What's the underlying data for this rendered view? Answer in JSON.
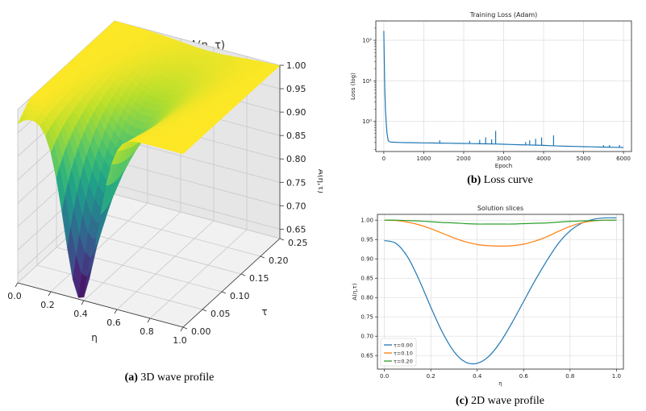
{
  "captions": {
    "a": {
      "label": "(a)",
      "text": "3D wave profile"
    },
    "b": {
      "label": "(b)",
      "text": "Loss curve"
    },
    "c": {
      "label": "(c)",
      "text": "2D wave profile"
    }
  },
  "chart_data": [
    {
      "type": "surface3d",
      "title": "PINN prediction A(η ,τ)",
      "xlabel": "η",
      "ylabel": "τ",
      "zlabel": "A(η,τ)",
      "xlim": [
        0.0,
        1.0
      ],
      "ylim": [
        0.0,
        0.25
      ],
      "zlim": [
        0.63,
        1.0
      ],
      "x_ticks": [
        "0.0",
        "0.2",
        "0.4",
        "0.6",
        "0.8",
        "1.0"
      ],
      "y_ticks": [
        "0.00",
        "0.05",
        "0.10",
        "0.15",
        "0.20",
        "0.25"
      ],
      "z_ticks": [
        "0.65",
        "0.70",
        "0.75",
        "0.80",
        "0.85",
        "0.90",
        "0.95",
        "1.00"
      ],
      "colormap": "viridis",
      "description_values": {
        "min_value": 0.63,
        "min_eta": 0.38,
        "min_tau": 0.0,
        "max_value": 1.0
      }
    },
    {
      "type": "line",
      "title": "Training Loss (Adam)",
      "xlabel": "Epoch",
      "ylabel": "Loss (log)",
      "yscale": "log",
      "xlim": [
        -200,
        6200
      ],
      "ylim": [
        0.18,
        300
      ],
      "x_ticks": [
        "0",
        "1000",
        "2000",
        "3000",
        "4000",
        "5000",
        "6000"
      ],
      "y_ticks": [
        "10⁰",
        "10¹",
        "10²"
      ],
      "grid": true,
      "series": [
        {
          "name": "loss",
          "color": "#1f77b4",
          "x": [
            0,
            10,
            25,
            40,
            60,
            80,
            110,
            150,
            250,
            400,
            600,
            800,
            1000,
            1200,
            1400,
            1600,
            1800,
            2000,
            2200,
            2400,
            2600,
            2800,
            3000,
            3200,
            3400,
            3600,
            3800,
            4000,
            4200,
            4400,
            4600,
            4800,
            5000,
            5200,
            5400,
            5600,
            5800,
            6000
          ],
          "y": [
            170,
            40,
            6.5,
            2.0,
            0.9,
            0.5,
            0.33,
            0.31,
            0.305,
            0.3,
            0.298,
            0.296,
            0.294,
            0.292,
            0.29,
            0.288,
            0.286,
            0.284,
            0.282,
            0.28,
            0.278,
            0.276,
            0.272,
            0.268,
            0.265,
            0.262,
            0.258,
            0.255,
            0.25,
            0.246,
            0.242,
            0.24,
            0.237,
            0.235,
            0.232,
            0.23,
            0.228,
            0.226
          ]
        }
      ],
      "spikes": [
        {
          "x": 1400,
          "y": 0.34
        },
        {
          "x": 2150,
          "y": 0.33
        },
        {
          "x": 2400,
          "y": 0.35
        },
        {
          "x": 2550,
          "y": 0.4
        },
        {
          "x": 2700,
          "y": 0.36
        },
        {
          "x": 2800,
          "y": 0.58
        },
        {
          "x": 3550,
          "y": 0.31
        },
        {
          "x": 3650,
          "y": 0.34
        },
        {
          "x": 3800,
          "y": 0.37
        },
        {
          "x": 3950,
          "y": 0.4
        },
        {
          "x": 4250,
          "y": 0.45
        },
        {
          "x": 5500,
          "y": 0.26
        },
        {
          "x": 5650,
          "y": 0.26
        },
        {
          "x": 5900,
          "y": 0.26
        }
      ]
    },
    {
      "type": "line",
      "title": "Solution slices",
      "xlabel": "η",
      "ylabel": "A(η,τ)",
      "xlim": [
        -0.03,
        1.03
      ],
      "ylim": [
        0.615,
        1.015
      ],
      "x_ticks": [
        "0.0",
        "0.2",
        "0.4",
        "0.6",
        "0.8",
        "1.0"
      ],
      "y_ticks": [
        "0.65",
        "0.70",
        "0.75",
        "0.80",
        "0.85",
        "0.90",
        "0.95",
        "1.00"
      ],
      "grid": true,
      "legend_position": "bottom-left",
      "x": [
        0.0,
        0.05,
        0.1,
        0.15,
        0.2,
        0.25,
        0.3,
        0.35,
        0.4,
        0.45,
        0.5,
        0.55,
        0.6,
        0.65,
        0.7,
        0.75,
        0.8,
        0.85,
        0.9,
        0.95,
        1.0
      ],
      "series": [
        {
          "name": "τ=0.00",
          "color": "#1f77b4",
          "values": [
            0.947,
            0.94,
            0.905,
            0.845,
            0.775,
            0.71,
            0.66,
            0.633,
            0.63,
            0.648,
            0.685,
            0.735,
            0.79,
            0.845,
            0.895,
            0.94,
            0.972,
            0.992,
            1.002,
            1.006,
            1.006
          ]
        },
        {
          "name": "τ=0.10",
          "color": "#ff7f0e",
          "values": [
            1.0,
            0.999,
            0.995,
            0.988,
            0.978,
            0.966,
            0.954,
            0.944,
            0.937,
            0.934,
            0.933,
            0.934,
            0.938,
            0.946,
            0.957,
            0.971,
            0.984,
            0.993,
            0.998,
            1.0,
            1.0
          ]
        },
        {
          "name": "τ=0.20",
          "color": "#2ca02c",
          "values": [
            1.0,
            1.0,
            0.999,
            0.998,
            0.996,
            0.994,
            0.993,
            0.991,
            0.99,
            0.99,
            0.99,
            0.99,
            0.991,
            0.992,
            0.993,
            0.995,
            0.997,
            0.998,
            0.999,
            1.0,
            1.0
          ]
        }
      ]
    }
  ]
}
